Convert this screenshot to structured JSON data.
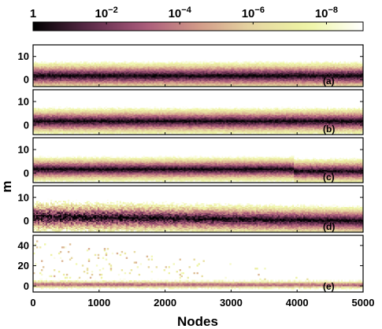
{
  "chart_data": {
    "type": "heatmap",
    "title": "",
    "xlabel": "Nodes",
    "ylabel": "m",
    "xlim": [
      0,
      5000
    ],
    "x_ticks": [
      "0",
      "1000",
      "2000",
      "3000",
      "4000",
      "5000"
    ],
    "colorbar": {
      "position": "top",
      "scale": "log",
      "range": [
        1,
        1e-09
      ],
      "ticks": [
        {
          "base": "1",
          "exp": ""
        },
        {
          "base": "10",
          "exp": "−2"
        },
        {
          "base": "10",
          "exp": "−4"
        },
        {
          "base": "10",
          "exp": "−6"
        },
        {
          "base": "10",
          "exp": "−8"
        }
      ],
      "tick_values": [
        1,
        0.01,
        0.0001,
        1e-06,
        1e-08
      ],
      "colors": [
        "#000000",
        "#5a2a48",
        "#a8587a",
        "#d29a88",
        "#e6d7a2",
        "#eef5a3",
        "#ffffff"
      ]
    },
    "panels": [
      {
        "label": "(a)",
        "ylim": [
          -3,
          15
        ],
        "y_ticks": [
          "0",
          "10"
        ],
        "center": 1.5,
        "width": 3.4,
        "top_noise": 8,
        "bottom_noise": 3
      },
      {
        "label": "(b)",
        "ylim": [
          -4,
          15
        ],
        "y_ticks": [
          "0",
          "10"
        ],
        "center": 1.5,
        "width": 3.2,
        "top_noise": 7,
        "bottom_noise": 3
      },
      {
        "label": "(c)",
        "ylim": [
          -4,
          15
        ],
        "y_ticks": [
          "0",
          "10"
        ],
        "center": 1.5,
        "width": 3.0,
        "top_noise": 2,
        "bottom_noise": 2
      },
      {
        "label": "(d)",
        "ylim": [
          -5,
          15
        ],
        "y_ticks": [
          "0",
          "10"
        ],
        "center": 1.5,
        "width": 3.6,
        "top_noise": 10,
        "bottom_noise": 4
      },
      {
        "label": "(e)",
        "ylim": [
          -6,
          50
        ],
        "y_ticks": [
          "0",
          "20",
          "40"
        ],
        "center": 1.0,
        "width": 3.0,
        "top_noise": 45,
        "bottom_noise": 2
      }
    ]
  }
}
